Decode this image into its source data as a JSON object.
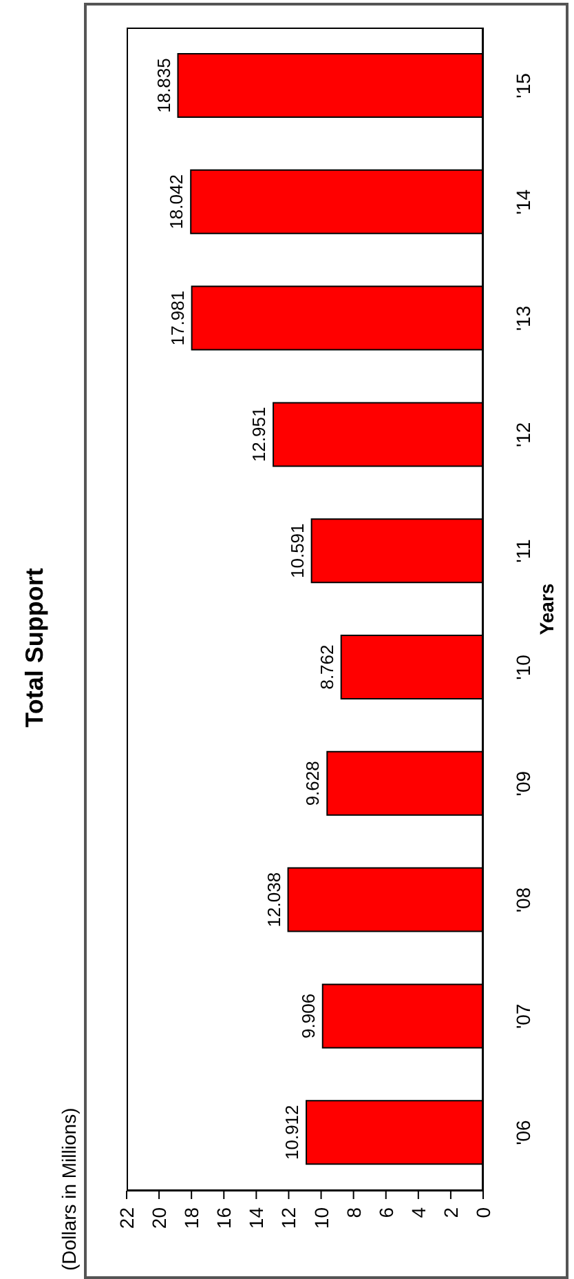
{
  "chart_data": {
    "type": "bar",
    "orientation": "horizontal",
    "title": "Total Support",
    "annotations": [
      "(Dollars in Millions)"
    ],
    "ylabel": "Years",
    "categories": [
      "'15",
      "'14",
      "'13",
      "'12",
      "'11",
      "'10",
      "'09",
      "'08",
      "'07",
      "'06"
    ],
    "values": [
      18.835,
      18.042,
      17.981,
      12.951,
      10.591,
      8.762,
      9.628,
      12.038,
      9.906,
      10.912
    ],
    "color": "#ff0000",
    "xlim": [
      22,
      0
    ],
    "xticks": [
      0,
      2,
      4,
      6,
      8,
      10,
      12,
      14,
      16,
      18,
      20,
      22
    ],
    "data_labels": true
  }
}
